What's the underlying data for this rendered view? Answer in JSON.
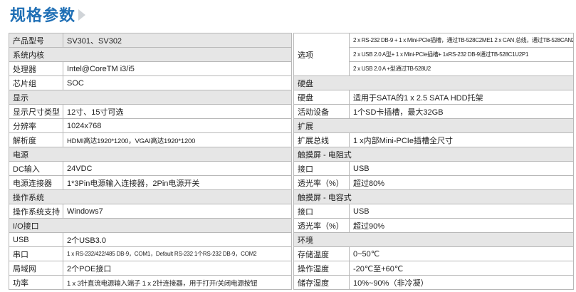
{
  "header": {
    "title": "规格参数"
  },
  "left": [
    {
      "label": "产品型号",
      "value": "SV301、SV302"
    },
    {
      "section": "系统内核"
    },
    {
      "label": "处理器",
      "value": "Intel@CoreTM i3/i5"
    },
    {
      "label": "芯片组",
      "value": "SOC"
    },
    {
      "section": "显示"
    },
    {
      "label": "显示尺寸类型",
      "value": "12寸、15寸可选"
    },
    {
      "label": "分辨率",
      "value": "1024x768"
    },
    {
      "label": "解析度",
      "value": "HDMI高达1920*1200，VGAI高达1920*1200"
    },
    {
      "section": "电源"
    },
    {
      "label": "DC输入",
      "value": "24VDC"
    },
    {
      "label": "电源连接器",
      "value": "1*3Pin电源输入连接器，2Pin电源开关"
    },
    {
      "section": "操作系统"
    },
    {
      "label": "操作系统支持",
      "value": "Windows7"
    },
    {
      "section": "I/O接口"
    },
    {
      "label": "USB",
      "value": "2个USB3.0"
    },
    {
      "label": "串口",
      "value": "1 x RS-232/422/485 DB-9，COM1，Default RS-232  1个RS-232 DB-9，COM2"
    },
    {
      "label": "局域网",
      "value": "2个POE接口"
    },
    {
      "label": "功率",
      "value": "1 x 3针直流电源输入端子   1 x 2针连接器，用于打开/关闭电源按钮"
    }
  ],
  "right": [
    {
      "label": "选项",
      "values": [
        "2 x RS-232 DB-9 + 1 x Mini-PCIe插槽，通过TB-528C2ME1 2 x CAN 总线，通过TB-528CAN2",
        "2 x USB 2.0 A型+ 1 x Mini-PCIe插槽+ 1xRS-232 DB-9通过TB-528C1U2P1",
        "2 x USB 2.0 A +型通过TB-528U2"
      ]
    },
    {
      "section": "硬盘"
    },
    {
      "label": "硬盘",
      "value": "适用于SATA的1 x 2.5 SATA HDD托架"
    },
    {
      "label": "活动设备",
      "value": "1个SD卡插槽，最大32GB"
    },
    {
      "section": "扩展"
    },
    {
      "label": "扩展总线",
      "value": "1 x内部Mini-PCIe插槽全尺寸"
    },
    {
      "section": "触摸屏 - 电阻式"
    },
    {
      "label": "接口",
      "value": "USB"
    },
    {
      "label": "透光率（%）",
      "value": "超过80%"
    },
    {
      "section": "触摸屏 - 电容式"
    },
    {
      "label": "接口",
      "value": "USB"
    },
    {
      "label": "透光率（%）",
      "value": "超过90%"
    },
    {
      "section": "环境"
    },
    {
      "label": "存储温度",
      "value": "0~50℃"
    },
    {
      "label": "操作湿度",
      "value": "-20℃至+60℃"
    },
    {
      "label": "储存湿度",
      "value": "10%~90%（非冷凝）"
    }
  ]
}
